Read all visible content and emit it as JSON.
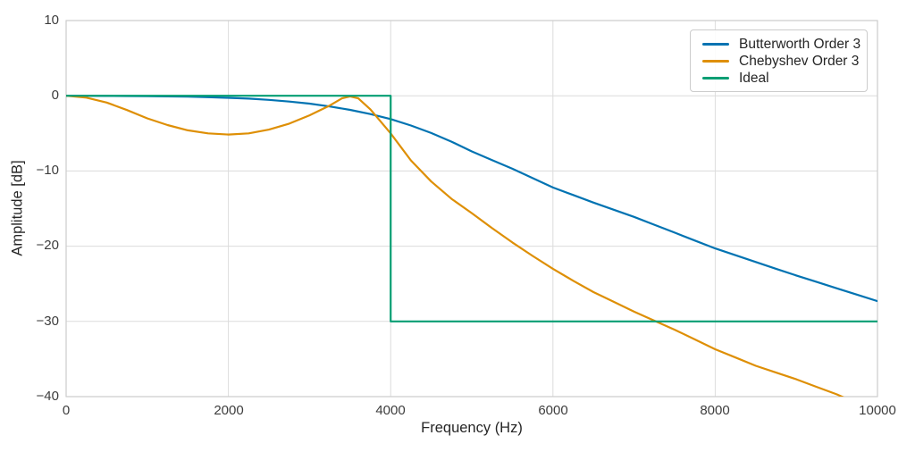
{
  "chart_data": {
    "type": "line",
    "x_axis": {
      "label": "Frequency (Hz)",
      "ticks": [
        "0",
        "2000",
        "4000",
        "6000",
        "8000",
        "10000"
      ],
      "tick_values": [
        0,
        2000,
        4000,
        6000,
        8000,
        10000
      ],
      "xlim": [
        0,
        10000
      ]
    },
    "y_axis": {
      "label": "Amplitude [dB]",
      "ticks": [
        "10",
        "0",
        "−10",
        "−20",
        "−30",
        "−40"
      ],
      "tick_values": [
        10,
        0,
        -10,
        -20,
        -30,
        -40
      ],
      "ylim": [
        -40,
        10
      ]
    },
    "grid": true,
    "legend_position": "upper right",
    "style": {
      "background": "#ffffff",
      "grid_color": "#dcdcdc",
      "spine_color": "#cccccc",
      "text_color": "#3d3d3d"
    },
    "series": [
      {
        "name": "Butterworth Order 3",
        "color": "#0173b2",
        "x": [
          0,
          250,
          500,
          750,
          1000,
          1250,
          1500,
          1750,
          2000,
          2250,
          2500,
          2750,
          3000,
          3250,
          3500,
          3750,
          4000,
          4250,
          4500,
          4750,
          5000,
          5250,
          5500,
          5750,
          6000,
          6250,
          6500,
          6750,
          7000,
          7250,
          7500,
          7750,
          8000,
          8250,
          8500,
          8750,
          9000,
          9250,
          9500,
          9750,
          10000
        ],
        "y": [
          0,
          -0.01,
          -0.02,
          -0.03,
          -0.05,
          -0.08,
          -0.12,
          -0.19,
          -0.27,
          -0.38,
          -0.55,
          -0.77,
          -1.05,
          -1.42,
          -1.88,
          -2.44,
          -3.1,
          -3.95,
          -4.95,
          -6.1,
          -7.4,
          -8.55,
          -9.7,
          -10.95,
          -12.2,
          -13.2,
          -14.2,
          -15.15,
          -16.1,
          -17.15,
          -18.2,
          -19.25,
          -20.3,
          -21.2,
          -22.1,
          -23.0,
          -23.9,
          -24.75,
          -25.6,
          -26.45,
          -27.3
        ]
      },
      {
        "name": "Chebyshev Order 3",
        "color": "#de8f05",
        "x": [
          0,
          250,
          500,
          750,
          1000,
          1250,
          1500,
          1750,
          2000,
          2250,
          2500,
          2750,
          3000,
          3250,
          3400,
          3500,
          3600,
          3750,
          4000,
          4250,
          4500,
          4750,
          5000,
          5250,
          5500,
          5750,
          6000,
          6250,
          6500,
          6750,
          7000,
          7250,
          7500,
          7750,
          8000,
          8250,
          8500,
          8750,
          9000,
          9250,
          9500,
          9750,
          10000
        ],
        "y": [
          0,
          -0.25,
          -0.9,
          -1.9,
          -3.0,
          -3.9,
          -4.6,
          -5.0,
          -5.15,
          -5.0,
          -4.5,
          -3.7,
          -2.6,
          -1.3,
          -0.35,
          -0.08,
          -0.35,
          -1.8,
          -5.0,
          -8.6,
          -11.4,
          -13.7,
          -15.6,
          -17.6,
          -19.5,
          -21.3,
          -23.0,
          -24.6,
          -26.1,
          -27.4,
          -28.7,
          -29.9,
          -31.1,
          -32.4,
          -33.7,
          -34.8,
          -35.9,
          -36.8,
          -37.7,
          -38.7,
          -39.7,
          -40.9,
          -42.0
        ]
      },
      {
        "name": "Ideal",
        "color": "#029e73",
        "x": [
          0,
          4000,
          4000,
          10000
        ],
        "y": [
          0,
          0,
          -30,
          -30
        ]
      }
    ]
  }
}
